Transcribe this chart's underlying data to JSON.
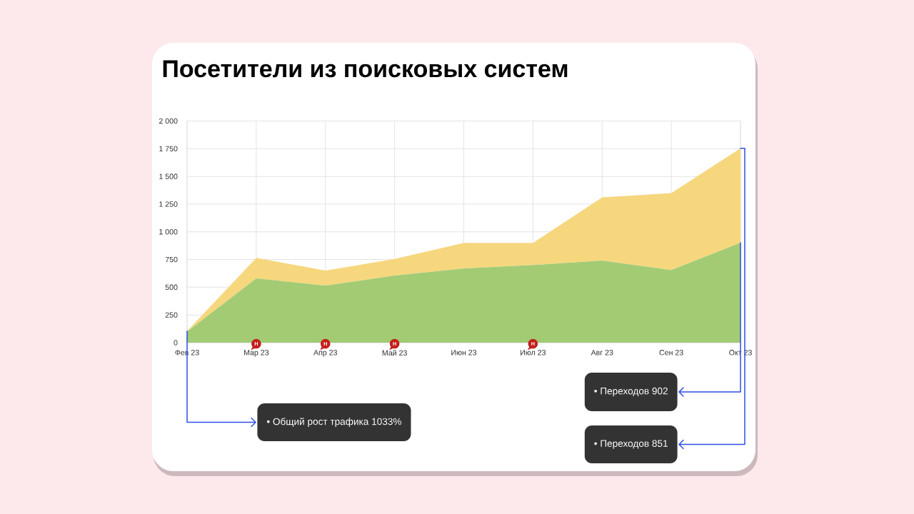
{
  "chart_data": {
    "type": "area",
    "title": "Посетители из поисковых систем",
    "categories": [
      "Фев 23",
      "Мар 23",
      "Апр 23",
      "Май 23",
      "Июн 23",
      "Июл 23",
      "Авг 23",
      "Сен 23",
      "Окт 23"
    ],
    "series": [
      {
        "color": "#a3cb74",
        "values": [
          100,
          580,
          515,
          605,
          670,
          700,
          740,
          655,
          902
        ]
      },
      {
        "color": "#f6d77e",
        "values": [
          5,
          185,
          135,
          150,
          230,
          200,
          570,
          695,
          851
        ]
      }
    ],
    "stacked": true,
    "ylim": [
      0,
      2000
    ],
    "yticks": [
      0,
      250,
      500,
      750,
      {
        "value": 1000,
        "label": "1 000"
      },
      {
        "value": 1250,
        "label": "1 250"
      },
      {
        "value": 1500,
        "label": "1 500"
      },
      {
        "value": 1750,
        "label": "1 750"
      },
      {
        "value": 2000,
        "label": "2 000"
      }
    ],
    "grid": true,
    "annotations": [
      {
        "text": "Н",
        "x": "Мар 23"
      },
      {
        "text": "Н",
        "x": "Апр 23"
      },
      {
        "text": "Н",
        "x": "Май 23"
      },
      {
        "text": "Н",
        "x": "Июл 23"
      },
      {
        "text": "• Общий рост трафика 1033%",
        "x": "Фев 23",
        "y": 105
      },
      {
        "text": "• Переходов 902",
        "x": "Окт 23",
        "y": 902
      },
      {
        "text": "• Переходов 851",
        "x": "Окт 23",
        "y": 1753
      }
    ]
  }
}
